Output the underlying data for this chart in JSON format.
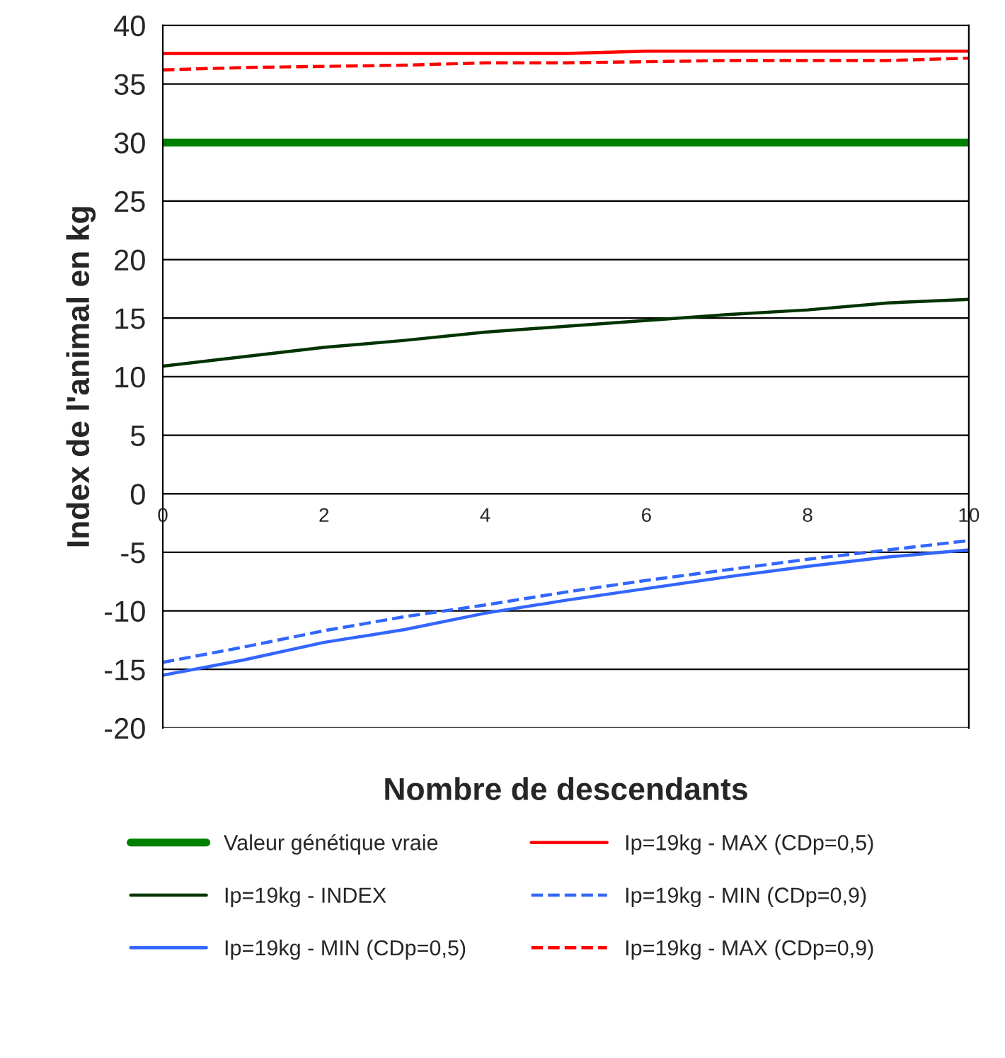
{
  "chart_data": {
    "type": "line",
    "xlabel": "Nombre de descendants",
    "ylabel": "Index de l'animal en kg",
    "x": [
      0,
      1,
      2,
      3,
      4,
      5,
      6,
      7,
      8,
      9,
      10
    ],
    "xlim": [
      0,
      10
    ],
    "xticks": [
      0,
      2,
      4,
      6,
      8,
      10
    ],
    "ylim": [
      -20,
      40
    ],
    "yticks": [
      -20,
      -15,
      -10,
      -5,
      0,
      5,
      10,
      15,
      20,
      25,
      30,
      35,
      40
    ],
    "grid": "y",
    "legend": "bottom",
    "marker": "none",
    "series": [
      {
        "name": "Valeur génétique vraie",
        "color": "#008000",
        "line_style": "solid",
        "values": [
          30,
          30,
          30,
          30,
          30,
          30,
          30,
          30,
          30,
          30,
          30
        ]
      },
      {
        "name": "Ip=19kg - INDEX",
        "color": "#003300",
        "line_style": "solid",
        "values": [
          10.9,
          11.7,
          12.5,
          13.1,
          13.8,
          14.3,
          14.8,
          15.3,
          15.7,
          16.3,
          16.6
        ]
      },
      {
        "name": "Ip=19kg - MIN (CDp=0,5)",
        "color": "#3366ff",
        "line_style": "solid",
        "values": [
          -15.5,
          -14.2,
          -12.7,
          -11.6,
          -10.2,
          -9.1,
          -8.1,
          -7.1,
          -6.2,
          -5.4,
          -4.8
        ]
      },
      {
        "name": "Ip=19kg - MAX (CDp=0,5)",
        "color": "#ff0000",
        "line_style": "solid",
        "values": [
          37.6,
          37.6,
          37.6,
          37.6,
          37.6,
          37.6,
          37.8,
          37.8,
          37.8,
          37.8,
          37.8
        ]
      },
      {
        "name": "Ip=19kg - MIN (CDp=0,9)",
        "color": "#3366ff",
        "line_style": "dashed",
        "values": [
          -14.4,
          -13.1,
          -11.7,
          -10.5,
          -9.5,
          -8.4,
          -7.4,
          -6.5,
          -5.6,
          -4.8,
          -4.0
        ]
      },
      {
        "name": "Ip=19kg - MAX (CDp=0,9)",
        "color": "#ff0000",
        "line_style": "dashed",
        "values": [
          36.2,
          36.4,
          36.5,
          36.6,
          36.8,
          36.8,
          36.9,
          37.0,
          37.0,
          37.0,
          37.2
        ]
      }
    ]
  }
}
